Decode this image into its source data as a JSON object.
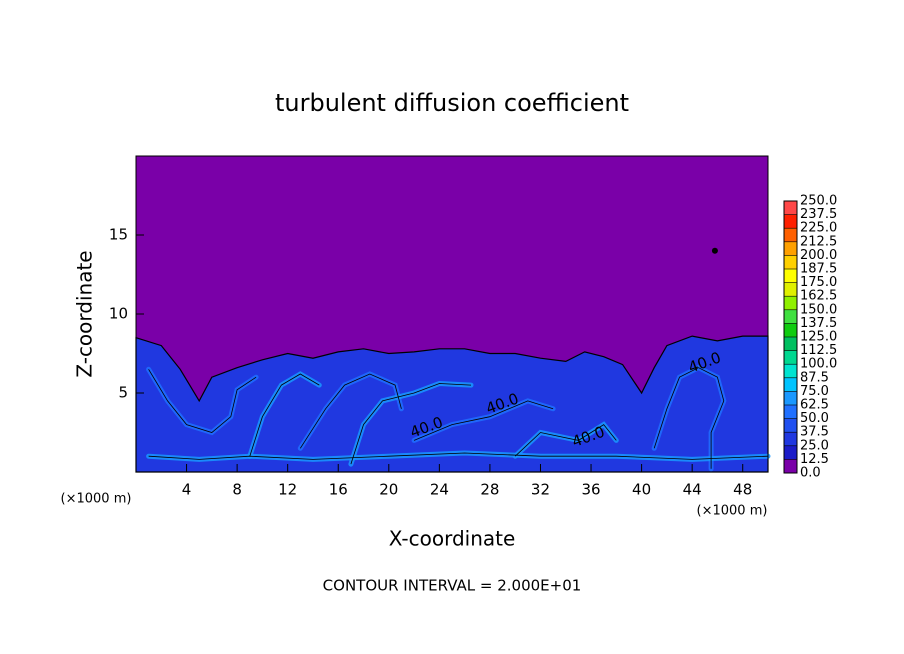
{
  "chart_data": {
    "type": "contour",
    "title": "turbulent diffusion coefficient",
    "x_label": "X-coordinate",
    "y_label": "Z-coordinate",
    "x_unit": "(×1000 m)",
    "y_unit": "(×1000 m)",
    "xlim": [
      0,
      50
    ],
    "ylim": [
      0,
      20
    ],
    "xticks": [
      4,
      8,
      12,
      16,
      20,
      24,
      28,
      32,
      36,
      40,
      44,
      48
    ],
    "yticks": [
      5,
      10,
      15
    ],
    "levels": [
      {
        "value": 0,
        "label": "0.0"
      },
      {
        "value": 12.5,
        "label": "12.5"
      },
      {
        "value": 25,
        "label": "25.0"
      },
      {
        "value": 37.5,
        "label": "37.5"
      },
      {
        "value": 50,
        "label": "50.0"
      },
      {
        "value": 62.5,
        "label": "62.5"
      },
      {
        "value": 75,
        "label": "75.0"
      },
      {
        "value": 87.5,
        "label": "87.5"
      },
      {
        "value": 100,
        "label": "100.0"
      },
      {
        "value": 112.5,
        "label": "112.5"
      },
      {
        "value": 125,
        "label": "125.0"
      },
      {
        "value": 137.5,
        "label": "137.5"
      },
      {
        "value": 150,
        "label": "150.0"
      },
      {
        "value": 162.5,
        "label": "162.5"
      },
      {
        "value": 175,
        "label": "175.0"
      },
      {
        "value": 187.5,
        "label": "187.5"
      },
      {
        "value": 200,
        "label": "200.0"
      },
      {
        "value": 212.5,
        "label": "212.5"
      },
      {
        "value": 225,
        "label": "225.0"
      },
      {
        "value": 237.5,
        "label": "237.5"
      },
      {
        "value": 250,
        "label": "250.0"
      }
    ],
    "level_colors": [
      "#7a00a8",
      "#1c1cc8",
      "#2038e0",
      "#2050f0",
      "#2070ff",
      "#1a98ff",
      "#00c4ff",
      "#00e4d0",
      "#00d890",
      "#00c060",
      "#10cc10",
      "#40e040",
      "#90f000",
      "#e0f000",
      "#ffff00",
      "#ffd000",
      "#ffa000",
      "#ff6000",
      "#ff2000",
      "#ff4848",
      "#f08080"
    ],
    "contour_labels": [
      {
        "value": 40,
        "label": "40.0"
      },
      {
        "value": 40,
        "label": "40.0"
      },
      {
        "value": 40,
        "label": "40.0"
      },
      {
        "value": 40,
        "label": "40.0"
      }
    ],
    "footer": "CONTOUR INTERVAL = 2.000E+01"
  }
}
